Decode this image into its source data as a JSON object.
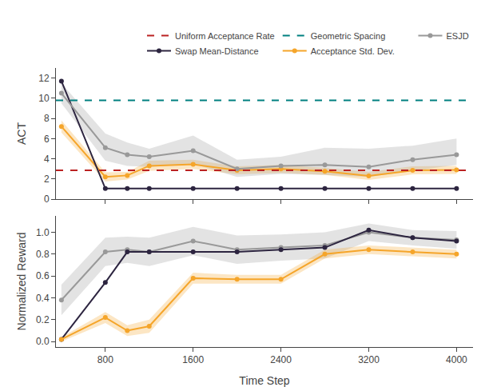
{
  "chart_data": [
    {
      "type": "line",
      "ylabel": "ACT",
      "x": [
        400,
        800,
        1000,
        1200,
        1600,
        2000,
        2400,
        2800,
        3200,
        3600,
        4000
      ],
      "xlim": [
        350,
        4150
      ],
      "xticks": [
        800,
        1600,
        2400,
        3200,
        4000
      ],
      "ylim": [
        0,
        13
      ],
      "yticks": [
        0,
        2,
        4,
        6,
        8,
        10,
        12
      ],
      "grid": false,
      "legend": "top",
      "tick_labels": "y",
      "series": [
        {
          "name": "Acceptance Std. Dev.",
          "color": "#f5a52a",
          "marker": "circle",
          "line_style": "solid",
          "values": [
            7.2,
            2.2,
            2.35,
            3.3,
            3.45,
            2.85,
            3.0,
            2.75,
            2.3,
            2.85,
            2.9
          ],
          "upper": [
            7.8,
            2.65,
            2.7,
            3.8,
            3.9,
            3.25,
            3.4,
            3.1,
            2.7,
            3.25,
            3.3
          ],
          "lower": [
            6.6,
            1.75,
            1.95,
            2.8,
            3.0,
            2.45,
            2.6,
            2.4,
            1.9,
            2.45,
            2.5
          ]
        },
        {
          "name": "Swap Mean-Distance",
          "color": "#2d2540",
          "marker": "circle",
          "line_style": "solid",
          "values": [
            11.7,
            1.05,
            1.05,
            1.05,
            1.05,
            1.05,
            1.05,
            1.05,
            1.05,
            1.05,
            1.05
          ]
        },
        {
          "name": "ESJD",
          "color": "#999999",
          "marker": "circle",
          "line_style": "solid",
          "values": [
            10.5,
            5.1,
            4.4,
            4.2,
            4.8,
            3.0,
            3.3,
            3.4,
            3.2,
            3.9,
            4.4
          ],
          "upper": [
            11.5,
            6.5,
            5.6,
            5.0,
            6.3,
            3.9,
            4.2,
            5.1,
            5.0,
            5.3,
            6.0
          ],
          "lower": [
            9.5,
            3.8,
            3.3,
            3.2,
            3.5,
            2.2,
            2.5,
            2.4,
            2.2,
            2.8,
            3.4
          ]
        },
        {
          "name": "Geometric Spacing",
          "type": "hline",
          "color": "#008080",
          "line_style": "dashed",
          "value": 9.8
        },
        {
          "name": "Uniform Acceptance Rate",
          "type": "hline",
          "color": "#bb2222",
          "line_style": "dashed",
          "value": 2.85
        }
      ]
    },
    {
      "type": "line",
      "xlabel": "Time Step",
      "ylabel": "Normalized Reward",
      "x": [
        400,
        800,
        1000,
        1200,
        1600,
        2000,
        2400,
        2800,
        3200,
        3600,
        4000
      ],
      "xlim": [
        350,
        4150
      ],
      "xticks": [
        800,
        1600,
        2400,
        3200,
        4000
      ],
      "ylim": [
        -0.05,
        1.15
      ],
      "yticks": [
        {
          "value": 0.0,
          "label": "0.0"
        },
        0.2,
        0.4,
        0.6,
        0.8,
        {
          "value": 1.0,
          "label": "1.0"
        }
      ],
      "grid": false,
      "series": [
        {
          "color": "#999999",
          "marker": "circle",
          "line_style": "solid",
          "values": [
            0.38,
            0.82,
            0.84,
            0.82,
            0.92,
            0.84,
            0.86,
            0.88,
            1.0,
            0.95,
            0.93
          ],
          "upper": [
            0.52,
            0.95,
            0.96,
            0.95,
            1.05,
            0.97,
            0.98,
            1.0,
            1.08,
            1.02,
            1.01
          ],
          "lower": [
            0.24,
            0.69,
            0.72,
            0.69,
            0.79,
            0.71,
            0.74,
            0.76,
            0.92,
            0.88,
            0.85
          ]
        },
        {
          "color": "#2d2540",
          "marker": "circle",
          "line_style": "solid",
          "values": [
            0.02,
            0.54,
            0.82,
            0.82,
            0.82,
            0.82,
            0.84,
            0.86,
            1.02,
            0.95,
            0.92
          ]
        },
        {
          "color": "#f5a52a",
          "marker": "circle",
          "line_style": "solid",
          "values": [
            0.02,
            0.22,
            0.1,
            0.14,
            0.58,
            0.57,
            0.57,
            0.8,
            0.84,
            0.82,
            0.8
          ],
          "upper": [
            0.04,
            0.27,
            0.15,
            0.2,
            0.63,
            0.61,
            0.61,
            0.84,
            0.88,
            0.86,
            0.84
          ],
          "lower": [
            0.0,
            0.17,
            0.05,
            0.08,
            0.53,
            0.53,
            0.53,
            0.76,
            0.8,
            0.78,
            0.76
          ]
        }
      ]
    }
  ]
}
